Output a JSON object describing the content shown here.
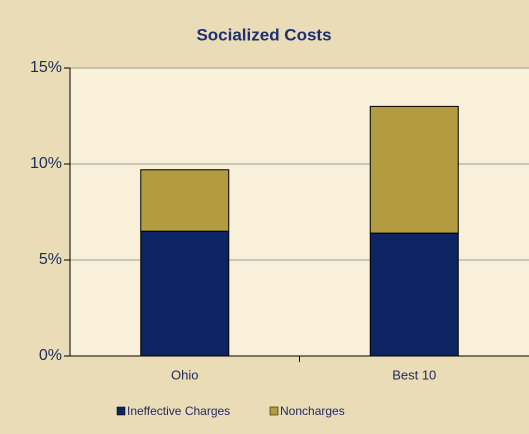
{
  "chart_data": {
    "type": "stacked_bar",
    "title": "Socialized Costs",
    "categories": [
      "Ohio",
      "Best 10"
    ],
    "series": [
      {
        "name": "Ineffective Charges",
        "color": "#0c2461",
        "values": [
          6.5,
          6.4
        ]
      },
      {
        "name": "Noncharges",
        "color": "#b39b3f",
        "values": [
          3.2,
          6.6
        ]
      }
    ],
    "ylim": [
      0,
      15
    ],
    "yticks": [
      {
        "value": 0,
        "label": "0%"
      },
      {
        "value": 5,
        "label": "5%"
      },
      {
        "value": 10,
        "label": "10%"
      },
      {
        "value": 15,
        "label": "15%"
      }
    ],
    "grid": true,
    "legend": "bottom"
  }
}
